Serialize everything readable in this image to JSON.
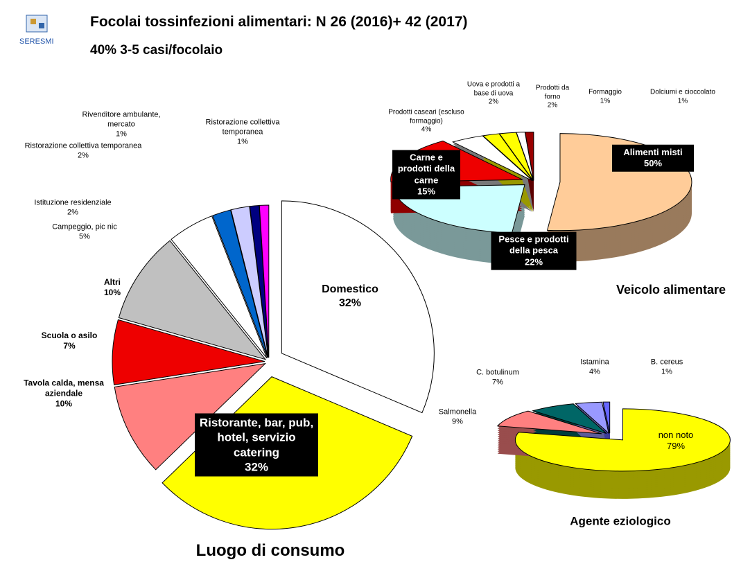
{
  "header": {
    "logo": "SERESMI",
    "title": "Focolai tossinfezioni alimentari: N 26 (2016)+ 42 (2017)",
    "subtitle": "40%  3-5 casi/focolaio"
  },
  "chart_data": [
    {
      "type": "pie",
      "title": "Luogo di consumo",
      "categories": [
        "Domestico",
        "Ristorante, bar, pub, hotel, servizio catering",
        "Tavola calda, mensa aziendale",
        "Scuola o asilo",
        "Altri",
        "Campeggio, pic nic",
        "Istituzione residenziale",
        "Ristorazione collettiva temporanea",
        "Rivenditore ambulante, mercato",
        "Ristorazione collettiva temporanea"
      ],
      "values": [
        32,
        32,
        10,
        7,
        10,
        5,
        2,
        2,
        1,
        1
      ],
      "value_labels": [
        "32%",
        "32%",
        "10%",
        "7%",
        "10%",
        "5%",
        "2%",
        "2%",
        "1%",
        "1%"
      ],
      "colors": [
        "#ffffff",
        "#ffff00",
        "#ff8080",
        "#ee0000",
        "#c0c0c0",
        "#ffffff",
        "#0066cc",
        "#ccccff",
        "#000080",
        "#ff00ff"
      ]
    },
    {
      "type": "pie",
      "title": "Veicolo alimentare",
      "categories": [
        "Alimenti misti",
        "Pesce e prodotti della pesca",
        "Carne e prodotti della carne",
        "Prodotti caseari (escluso formaggio)",
        "Uova e prodotti a base di uova",
        "Prodotti da forno",
        "Formaggio",
        "Dolciumi e cioccolato"
      ],
      "values": [
        50,
        22,
        15,
        4,
        2,
        2,
        1,
        1
      ],
      "value_labels": [
        "50%",
        "22%",
        "15%",
        "4%",
        "2%",
        "2%",
        "1%",
        "1%"
      ],
      "colors": [
        "#ffcc99",
        "#ccffff",
        "#ee0000",
        "#ffffff",
        "#ffff00",
        "#ffff00",
        "#ffffff",
        "#990000"
      ]
    },
    {
      "type": "pie",
      "title": "Agente eziologico",
      "categories": [
        "non noto",
        "Salmonella",
        "C. botulinum",
        "Istamina",
        "B. cereus"
      ],
      "values": [
        79,
        9,
        7,
        4,
        1
      ],
      "value_labels": [
        "79%",
        "9%",
        "7%",
        "4%",
        "1%"
      ],
      "colors": [
        "#ffff00",
        "#ff8080",
        "#006666",
        "#9999ff",
        "#6666ff"
      ]
    }
  ]
}
